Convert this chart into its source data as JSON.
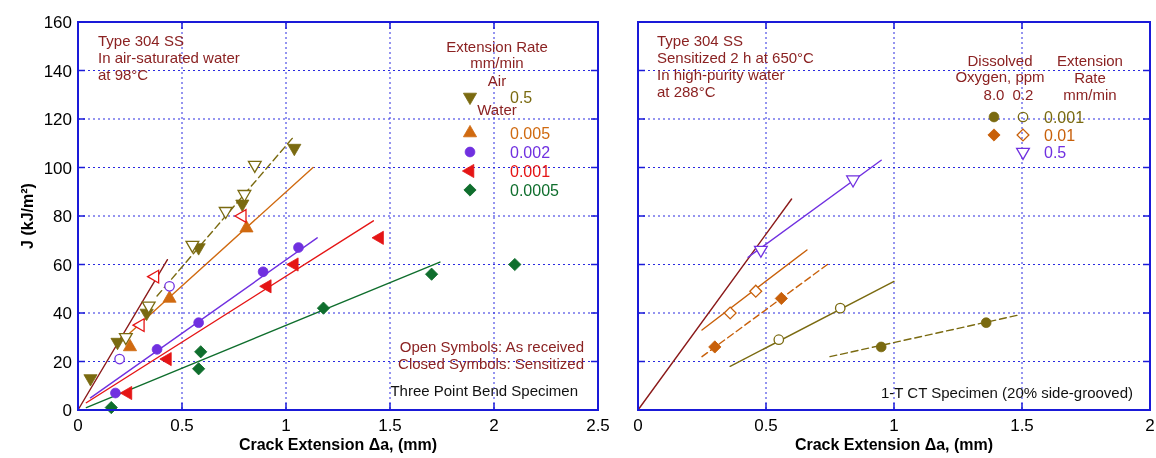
{
  "chart_data": [
    {
      "type": "scatter",
      "xlabel": "Crack Extension Δa, (mm)",
      "ylabel": "J (kJ/m²)",
      "xlim": [
        0,
        2.5
      ],
      "ylim": [
        0,
        160
      ],
      "xticks": [
        0,
        0.5,
        1,
        1.5,
        2,
        2.5
      ],
      "yticks": [
        0,
        20,
        40,
        60,
        80,
        100,
        120,
        140,
        160
      ],
      "grid": true,
      "legend": "top right",
      "legend_title": "Extension Rate\nmm/min",
      "annotations": [
        "Type 304 SS\nIn air-saturated water\nat 98°C",
        "Air",
        "Water",
        "Open Symbols: As received\nClosed Symbols: Sensitized",
        "Three Point Bend Specimen"
      ],
      "series": [
        {
          "type": "line",
          "color": "#8b1a1a",
          "x": [
            0,
            0.43
          ],
          "values": [
            0,
            62
          ]
        },
        {
          "type": "line",
          "color": "#7a6a10",
          "line_style": "dashed",
          "x": [
            0.38,
            1.03
          ],
          "values": [
            47,
            112
          ]
        },
        {
          "type": "line",
          "color": "#d06a10",
          "x": [
            0.24,
            1.13
          ],
          "values": [
            31,
            100
          ]
        },
        {
          "type": "line",
          "color": "#7030e0",
          "x": [
            0.06,
            1.15
          ],
          "values": [
            5,
            71
          ]
        },
        {
          "type": "line",
          "color": "#e51515",
          "x": [
            0.04,
            1.42
          ],
          "values": [
            3,
            78
          ]
        },
        {
          "type": "line",
          "color": "#0f6e2d",
          "x": [
            0.04,
            1.74
          ],
          "values": [
            1,
            61
          ]
        },
        {
          "name": "0.5",
          "marker": "triangle-down",
          "color": "#7a6a10",
          "x": [
            0.06,
            0.19,
            0.33,
            0.58,
            0.79,
            1.04
          ],
          "values": [
            13,
            28,
            40,
            67,
            85,
            108
          ]
        },
        {
          "marker": "triangle-down-open",
          "color": "#7a6a10",
          "x": [
            0.23,
            0.34,
            0.55,
            0.71,
            0.8,
            0.85
          ],
          "values": [
            30,
            43,
            68,
            82,
            89,
            101
          ]
        },
        {
          "name": "0.005",
          "marker": "triangle",
          "color": "#d06a10",
          "x": [
            0.25,
            0.44,
            0.81
          ],
          "values": [
            26,
            46,
            75
          ]
        },
        {
          "name": "0.002",
          "marker": "circle",
          "color": "#7030e0",
          "x": [
            0.18,
            0.38,
            0.58,
            0.89,
            1.06
          ],
          "values": [
            7,
            25,
            36,
            57,
            67
          ]
        },
        {
          "marker": "circle-open",
          "color": "#7030e0",
          "x": [
            0.2,
            0.44
          ],
          "values": [
            21,
            51
          ]
        },
        {
          "name": "0.001",
          "marker": "triangle-left",
          "color": "#e51515",
          "x": [
            0.24,
            0.43,
            0.91,
            1.04,
            1.45
          ],
          "values": [
            7,
            21,
            51,
            60,
            71
          ]
        },
        {
          "marker": "triangle-left-open",
          "color": "#e51515",
          "x": [
            0.3,
            0.37,
            0.79
          ],
          "values": [
            35,
            55,
            80
          ]
        },
        {
          "name": "0.0005",
          "marker": "diamond",
          "color": "#0f6e2d",
          "x": [
            0.16,
            0.58,
            0.59,
            1.18,
            1.7,
            2.1
          ],
          "values": [
            1,
            17,
            24,
            42,
            56,
            60
          ]
        }
      ]
    },
    {
      "type": "scatter",
      "xlabel": "Crack Extension Δa, (mm)",
      "xlim": [
        0,
        2
      ],
      "ylim": [
        0,
        160
      ],
      "xticks": [
        0,
        0.5,
        1,
        1.5,
        2
      ],
      "yticks": [
        0,
        20,
        40,
        60,
        80,
        100,
        120,
        140,
        160
      ],
      "tick_labels": "x",
      "grid": true,
      "legend": "top right",
      "legend_title": "Dissolved\nOxygen, ppm",
      "annotations": [
        "Type 304 SS\nSensitized 2 h at 650°C\nIn high-purity water\nat 288°C",
        "8.0",
        "0.2",
        "Extension\nRate\nmm/min",
        "1-T CT Specimen (20% side-grooved)"
      ],
      "series": [
        {
          "type": "line",
          "color": "#8b1a1a",
          "x": [
            0,
            0.6
          ],
          "values": [
            0,
            87
          ]
        },
        {
          "type": "line",
          "color": "#7030e0",
          "x": [
            0.43,
            0.95
          ],
          "values": [
            63,
            103
          ]
        },
        {
          "type": "line",
          "color": "#c8600a",
          "x": [
            0.25,
            0.66
          ],
          "values": [
            33,
            66
          ]
        },
        {
          "type": "line",
          "color": "#c8600a",
          "line_style": "dashed",
          "x": [
            0.25,
            0.74
          ],
          "values": [
            22,
            60
          ]
        },
        {
          "type": "line",
          "color": "#7a6a10",
          "x": [
            0.36,
            1.0
          ],
          "values": [
            18,
            53
          ]
        },
        {
          "type": "line",
          "color": "#7a6a10",
          "line_style": "dashed",
          "x": [
            0.75,
            1.48
          ],
          "values": [
            22,
            39
          ]
        },
        {
          "name": "0.001",
          "marker": "circle",
          "color": "#7a6a10",
          "x": [
            0.95,
            1.36
          ],
          "values": [
            26,
            36
          ]
        },
        {
          "marker": "circle-open",
          "color": "#7a6a10",
          "x": [
            0.55,
            0.79
          ],
          "values": [
            29,
            42
          ]
        },
        {
          "name": "0.01",
          "marker": "diamond",
          "color": "#c8600a",
          "x": [
            0.3,
            0.56
          ],
          "values": [
            26,
            46
          ]
        },
        {
          "marker": "diamond-open",
          "color": "#c8600a",
          "x": [
            0.36,
            0.46
          ],
          "values": [
            40,
            49
          ]
        },
        {
          "name": "0.5",
          "marker": "triangle-down-open",
          "color": "#7030e0",
          "x": [
            0.48,
            0.84
          ],
          "values": [
            66,
            95
          ]
        }
      ]
    }
  ]
}
